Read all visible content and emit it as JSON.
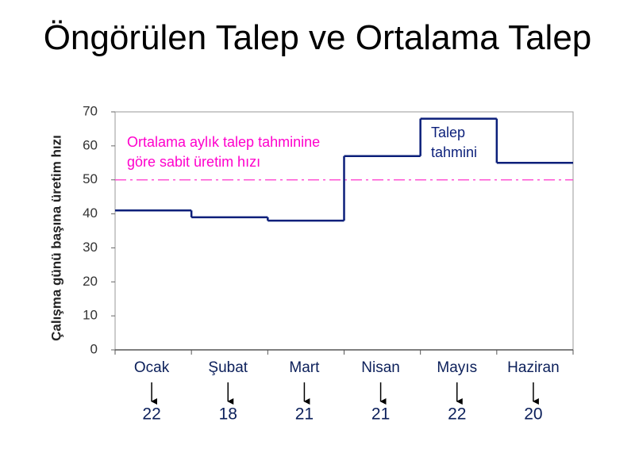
{
  "title": "Öngörülen Talep ve Ortalama Talep",
  "chart_data": {
    "type": "step",
    "y_label": "Çalışma günü başına üretim hızı",
    "categories": [
      "Ocak",
      "Şubat",
      "Mart",
      "Nisan",
      "Mayıs",
      "Haziran"
    ],
    "values": [
      41,
      39,
      38,
      57,
      68,
      55
    ],
    "color": "#0b1f7a",
    "working_days": [
      "22",
      "18",
      "21",
      "21",
      "22",
      "20"
    ],
    "reference_line": {
      "value": 50,
      "color": "#ff33cc"
    },
    "annotations": [
      {
        "lines": [
          "Ortalama aylık talep tahminine",
          "göre sabit üretim hızı"
        ],
        "color": "#ff00cc"
      },
      {
        "lines": [
          "Talep",
          "tahmini"
        ],
        "color": "#0b1f7a"
      }
    ],
    "ylim": [
      0,
      70
    ],
    "yticks": [
      0,
      10,
      20,
      30,
      40,
      50,
      60,
      70
    ]
  }
}
